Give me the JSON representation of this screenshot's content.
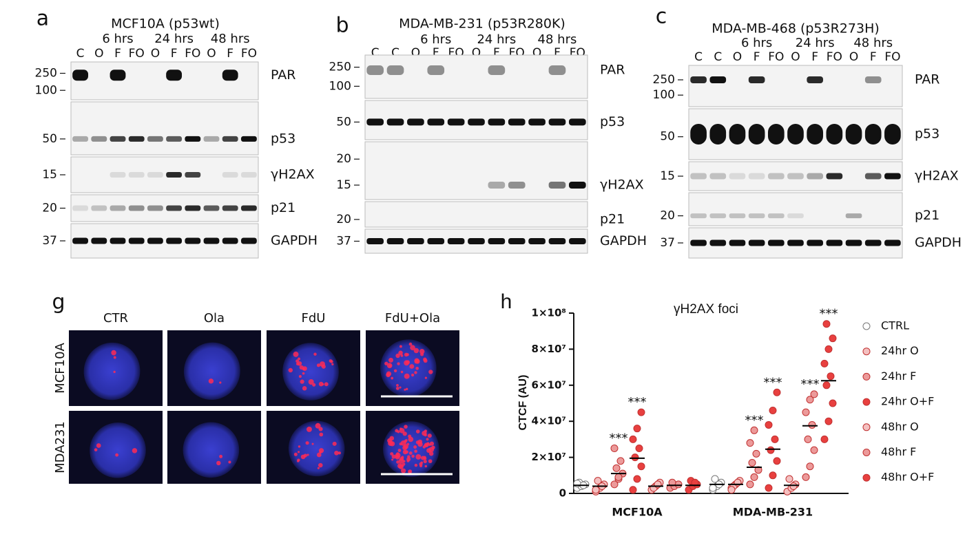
{
  "blots": [
    {
      "letter": "a",
      "title": "MCF10A (p53wt)",
      "times": [
        "6 hrs",
        "24 hrs",
        "48 hrs"
      ],
      "lanes": [
        "C",
        "O",
        "F",
        "FO",
        "O",
        "F",
        "FO",
        "O",
        "F",
        "FO"
      ],
      "rows": [
        {
          "label": "PAR",
          "markers": [
            "250",
            "100"
          ]
        },
        {
          "label": "p53",
          "markers": [
            "50"
          ]
        },
        {
          "label": "γH2AX",
          "markers": [
            "15"
          ]
        },
        {
          "label": "p21",
          "markers": [
            "20"
          ]
        },
        {
          "label": "GAPDH",
          "markers": [
            "37"
          ]
        }
      ]
    },
    {
      "letter": "b",
      "title": "MDA-MB-231 (p53R280K)",
      "times": [
        "6 hrs",
        "24 hrs",
        "48 hrs"
      ],
      "lanes": [
        "C",
        "C",
        "O",
        "F",
        "FO",
        "O",
        "F",
        "FO",
        "O",
        "F",
        "FO"
      ],
      "rows": [
        {
          "label": "PAR",
          "markers": [
            "250",
            "100"
          ]
        },
        {
          "label": "p53",
          "markers": [
            "50"
          ]
        },
        {
          "label": "γH2AX",
          "markers": [
            "20",
            "15"
          ]
        },
        {
          "label": "p21",
          "markers": [
            "20"
          ]
        },
        {
          "label": "GAPDH",
          "markers": [
            "37"
          ]
        }
      ]
    },
    {
      "letter": "c",
      "title": "MDA-MB-468 (p53R273H)",
      "times": [
        "6 hrs",
        "24 hrs",
        "48 hrs"
      ],
      "lanes": [
        "C",
        "C",
        "O",
        "F",
        "FO",
        "O",
        "F",
        "FO",
        "O",
        "F",
        "FO"
      ],
      "rows": [
        {
          "label": "PAR",
          "markers": [
            "250",
            "100"
          ]
        },
        {
          "label": "p53",
          "markers": [
            "50"
          ]
        },
        {
          "label": "γH2AX",
          "markers": [
            "15"
          ]
        },
        {
          "label": "p21",
          "markers": [
            "20"
          ]
        },
        {
          "label": "GAPDH",
          "markers": [
            "37"
          ]
        }
      ]
    }
  ],
  "micrographs": {
    "letter": "g",
    "columns": [
      "CTR",
      "Ola",
      "FdU",
      "FdU+Ola"
    ],
    "rows": [
      "MCF10A",
      "MDA231"
    ]
  },
  "chart_data": {
    "type": "strip",
    "letter": "h",
    "title": "γH2AX foci",
    "y_label": "CTCF (AU)",
    "categories": [
      "MCF10A",
      "MDA-MB-231"
    ],
    "ylim": [
      0,
      100000000
    ],
    "yticks": [
      0,
      {
        "value": 20000000,
        "label": "2×10⁷"
      },
      {
        "value": 40000000,
        "label": "4×10⁷"
      },
      {
        "value": 60000000,
        "label": "6×10⁷"
      },
      {
        "value": 80000000,
        "label": "8×10⁷"
      },
      {
        "value": 100000000,
        "label": "1×10⁸"
      }
    ],
    "series": [
      {
        "name": "CTRL",
        "color": "#ffffff",
        "values": [
          4500000,
          5000000
        ],
        "points": [
          [
            3000000,
            4000000,
            5000000,
            6000000,
            4500000,
            5500000
          ],
          [
            2000000,
            4000000,
            6000000,
            8000000,
            5000000,
            3000000
          ]
        ]
      },
      {
        "name": "24hr O",
        "color": "#f4c0c0",
        "values": [
          4000000,
          5000000
        ],
        "points": [
          [
            1000000,
            3000000,
            5000000,
            7000000,
            4000000,
            2000000
          ],
          [
            3000000,
            5000000,
            7000000,
            4000000,
            6000000,
            2000000
          ]
        ]
      },
      {
        "name": "24hr F",
        "color": "#ec9a9a",
        "values": [
          11000000,
          14500000
        ],
        "points": [
          [
            5000000,
            8000000,
            11000000,
            14000000,
            18000000,
            25000000,
            9000000
          ],
          [
            5000000,
            9000000,
            13000000,
            17000000,
            22000000,
            28000000,
            35000000
          ]
        ],
        "annotations": [
          "***",
          "***"
        ]
      },
      {
        "name": "24hr O+F",
        "color": "#e8403f",
        "values": [
          19500000,
          24500000
        ],
        "points": [
          [
            2000000,
            8000000,
            15000000,
            20000000,
            25000000,
            30000000,
            36000000,
            45000000
          ],
          [
            3000000,
            10000000,
            18000000,
            24000000,
            30000000,
            38000000,
            46000000,
            56000000
          ]
        ],
        "annotations": [
          "***",
          "***"
        ]
      },
      {
        "name": "48hr O",
        "color": "#f4c0c0",
        "values": [
          4000000,
          4500000
        ],
        "points": [
          [
            2000000,
            4000000,
            6000000,
            3000000,
            5000000
          ],
          [
            1000000,
            3000000,
            5000000,
            8000000,
            4000000
          ]
        ]
      },
      {
        "name": "48hr F",
        "color": "#ec9a9a",
        "values": [
          4500000,
          37500000
        ],
        "points": [
          [
            3000000,
            4000000,
            5000000,
            6000000
          ],
          [
            9000000,
            15000000,
            24000000,
            30000000,
            38000000,
            45000000,
            52000000,
            55000000
          ]
        ],
        "annotations": [
          null,
          "***"
        ]
      },
      {
        "name": "48hr O+F",
        "color": "#e8403f",
        "values": [
          4500000,
          62500000
        ],
        "points": [
          [
            2000000,
            4000000,
            5000000,
            7000000,
            6000000
          ],
          [
            30000000,
            40000000,
            50000000,
            60000000,
            65000000,
            72000000,
            80000000,
            86000000,
            94000000
          ]
        ],
        "annotations": [
          null,
          "***"
        ]
      }
    ]
  }
}
